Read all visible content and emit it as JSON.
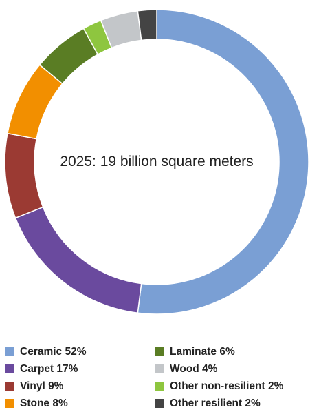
{
  "chart_data": {
    "type": "donut",
    "center_label": "2025: 19 billion square meters",
    "legend_position": "bottom",
    "slices": [
      {
        "label": "Ceramic",
        "value": 52,
        "legend": "Ceramic 52%",
        "color": "#7a9fd4"
      },
      {
        "label": "Carpet",
        "value": 17,
        "legend": "Carpet 17%",
        "color": "#6a4a9e"
      },
      {
        "label": "Vinyl",
        "value": 9,
        "legend": "Vinyl 9%",
        "color": "#9b3a33"
      },
      {
        "label": "Stone",
        "value": 8,
        "legend": "Stone 8%",
        "color": "#f28f00"
      },
      {
        "label": "Laminate",
        "value": 6,
        "legend": "Laminate 6%",
        "color": "#5a7d24"
      },
      {
        "label": "Other non-resilient",
        "value": 2,
        "legend": "Other non-resilient 2%",
        "color": "#8ec63f"
      },
      {
        "label": "Wood",
        "value": 4,
        "legend": "Wood 4%",
        "color": "#c3c6c9"
      },
      {
        "label": "Other resilient",
        "value": 2,
        "legend": "Other resilient 2%",
        "color": "#444444"
      }
    ],
    "legend_order": [
      "Ceramic",
      "Carpet",
      "Vinyl",
      "Stone",
      "Laminate",
      "Wood",
      "Other non-resilient",
      "Other resilient"
    ]
  }
}
